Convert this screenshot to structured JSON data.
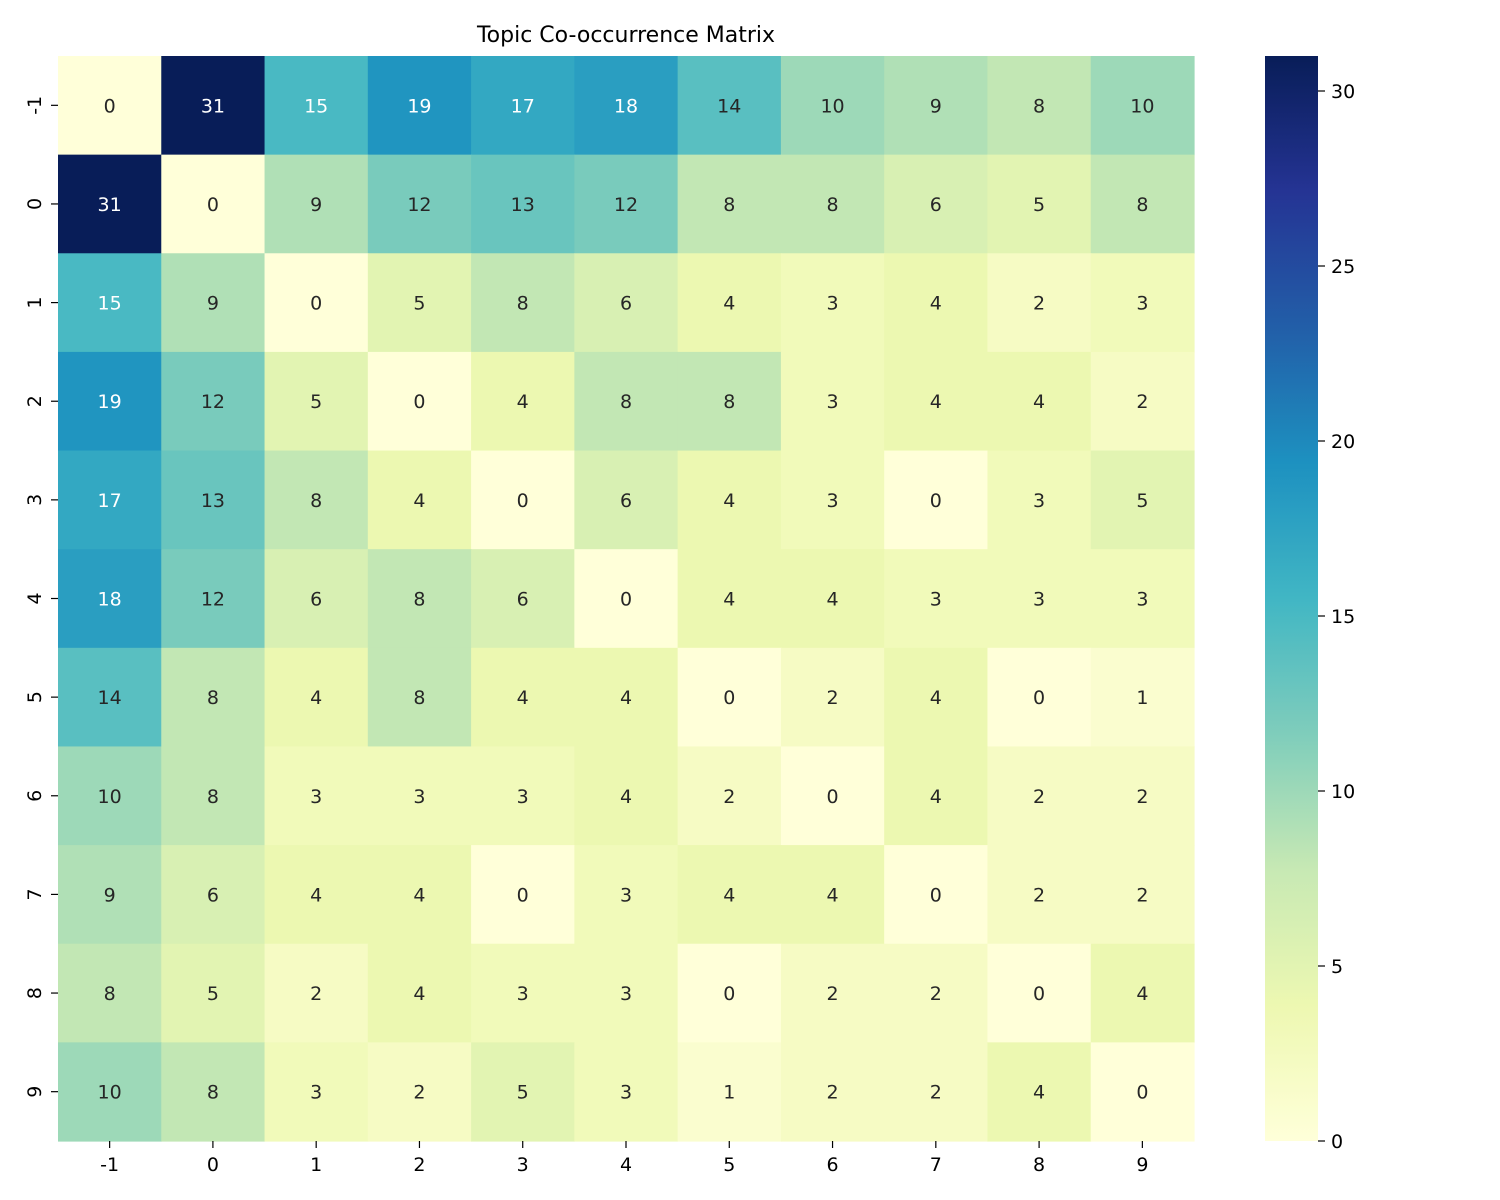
{
  "chart_data": {
    "type": "heatmap",
    "title": "Topic Co-occurrence Matrix",
    "xlabel": "",
    "ylabel": "",
    "x_categories": [
      "-1",
      "0",
      "1",
      "2",
      "3",
      "4",
      "5",
      "6",
      "7",
      "8",
      "9"
    ],
    "y_categories": [
      "-1",
      "0",
      "1",
      "2",
      "3",
      "4",
      "5",
      "6",
      "7",
      "8",
      "9"
    ],
    "values": [
      [
        0,
        31,
        15,
        19,
        17,
        18,
        14,
        10,
        9,
        8,
        10
      ],
      [
        31,
        0,
        9,
        12,
        13,
        12,
        8,
        8,
        6,
        5,
        8
      ],
      [
        15,
        9,
        0,
        5,
        8,
        6,
        4,
        3,
        4,
        2,
        3
      ],
      [
        19,
        12,
        5,
        0,
        4,
        8,
        8,
        3,
        4,
        4,
        2
      ],
      [
        17,
        13,
        8,
        4,
        0,
        6,
        4,
        3,
        0,
        3,
        5
      ],
      [
        18,
        12,
        6,
        8,
        6,
        0,
        4,
        4,
        3,
        3,
        3
      ],
      [
        14,
        8,
        4,
        8,
        4,
        4,
        0,
        2,
        4,
        0,
        1
      ],
      [
        10,
        8,
        3,
        3,
        3,
        4,
        2,
        0,
        4,
        2,
        2
      ],
      [
        9,
        6,
        4,
        4,
        0,
        3,
        4,
        4,
        0,
        2,
        2
      ],
      [
        8,
        5,
        2,
        4,
        3,
        3,
        0,
        2,
        2,
        0,
        4
      ],
      [
        10,
        8,
        3,
        2,
        5,
        3,
        1,
        2,
        2,
        4,
        0
      ]
    ],
    "colormap": "YlGnBu",
    "vmin": 0,
    "vmax": 31,
    "annotations": true,
    "colorbar": {
      "ticks": [
        0,
        5,
        10,
        15,
        20,
        25,
        30
      ],
      "position": "right"
    },
    "annotation_colors": {
      "dark": "#262626",
      "light": "#ffffff"
    }
  }
}
